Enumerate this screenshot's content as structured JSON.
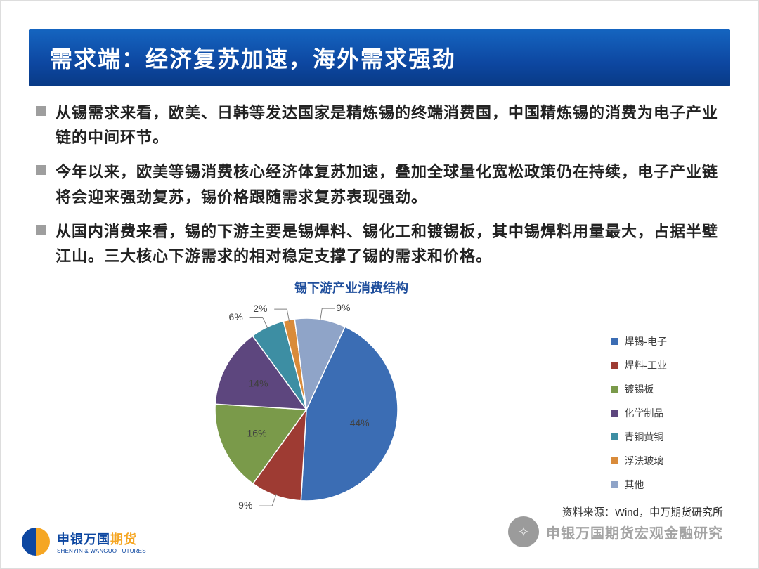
{
  "header": {
    "title": "需求端：经济复苏加速，海外需求强劲",
    "bar_gradient_top": "#1565c0",
    "bar_gradient_bottom": "#083a85",
    "text_color": "#ffffff",
    "title_fontsize": 32
  },
  "bullets": {
    "marker_color": "#9e9e9e",
    "text_color": "#222222",
    "fontsize": 22,
    "items": [
      "从锡需求来看，欧美、日韩等发达国家是精炼锡的终端消费国，中国精炼锡的消费为电子产业链的中间环节。",
      "今年以来，欧美等锡消费核心经济体复苏加速，叠加全球量化宽松政策仍在持续，电子产业链将会迎来强劲复苏，锡价格跟随需求复苏表现强劲。",
      "从国内消费来看，锡的下游主要是锡焊料、锡化工和镀锡板，其中锡焊料用量最大，占据半壁江山。三大核心下游需求的相对稳定支撑了锡的需求和价格。"
    ]
  },
  "chart": {
    "type": "pie",
    "title": "锡下游产业消费结构",
    "title_color": "#1f4e9c",
    "title_fontsize": 18,
    "background_color": "#ffffff",
    "start_angle_deg": 25,
    "show_leader_lines": true,
    "label_fontsize": 14,
    "label_color": "#404040",
    "slices": [
      {
        "label": "焊锡-电子",
        "value": 44,
        "display": "44%",
        "color": "#3b6db4"
      },
      {
        "label": "焊料-工业",
        "value": 9,
        "display": "9%",
        "color": "#9e3b33"
      },
      {
        "label": "镀锡板",
        "value": 16,
        "display": "16%",
        "color": "#7a9a4a"
      },
      {
        "label": "化学制品",
        "value": 14,
        "display": "14%",
        "color": "#5d467e"
      },
      {
        "label": "青铜黄铜",
        "value": 6,
        "display": "6%",
        "color": "#3d8ea3"
      },
      {
        "label": "浮法玻璃",
        "value": 2,
        "display": "2%",
        "color": "#d98b3a"
      },
      {
        "label": "其他",
        "value": 9,
        "display": "9%",
        "color": "#8fa4c8"
      }
    ],
    "legend": {
      "position": "right",
      "marker_size": 10,
      "fontsize": 14,
      "text_color": "#404040"
    }
  },
  "source": {
    "prefix": "资料来源：",
    "text": "Wind，申万期货研究所"
  },
  "footer_logo": {
    "cn_part1": "申银万国",
    "cn_part2": "期货",
    "en": "SHENYIN & WANGUO FUTURES",
    "blue": "#0d47a1",
    "orange": "#f5a623"
  },
  "watermark": {
    "icon_glyph": "✧",
    "text": "申银万国期货宏观金融研究"
  }
}
